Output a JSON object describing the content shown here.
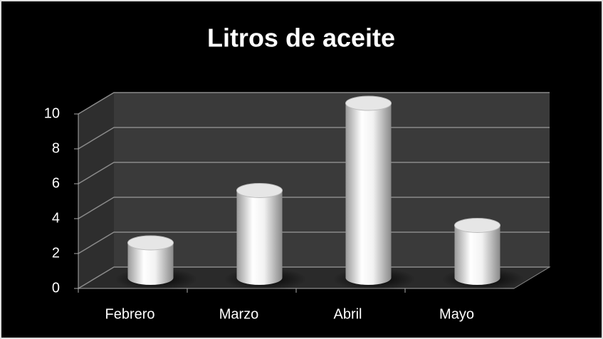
{
  "chart_data": {
    "type": "bar",
    "title": "Litros de aceite",
    "categories": [
      "Febrero",
      "Marzo",
      "Abril",
      "Mayo"
    ],
    "values": [
      2,
      5,
      10,
      3
    ],
    "ylim": [
      0,
      10
    ],
    "yticks": [
      0,
      2,
      4,
      6,
      8,
      10
    ],
    "grid": true,
    "color": "#ffffff"
  }
}
